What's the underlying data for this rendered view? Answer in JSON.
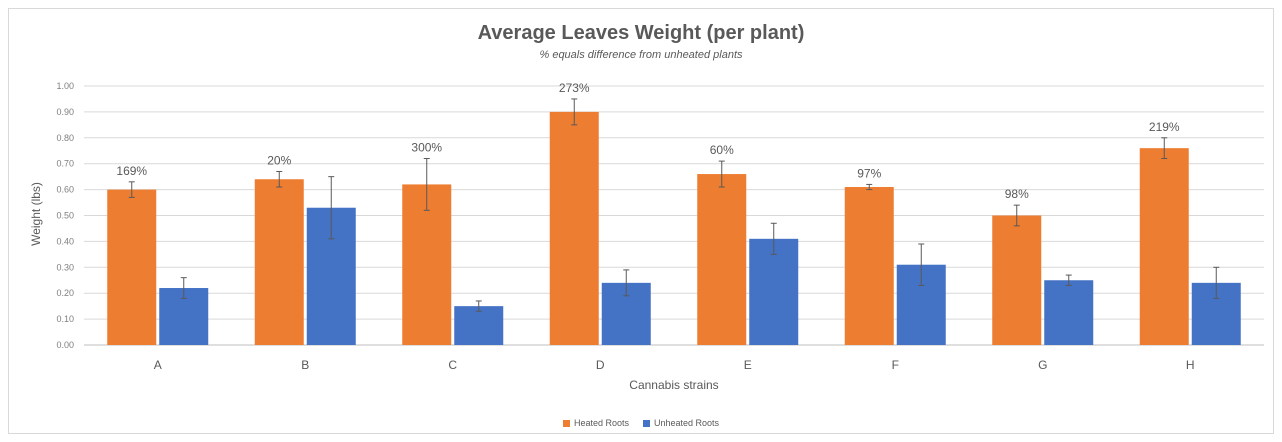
{
  "colors": {
    "heated": "#ed7d31",
    "unheated": "#4472c4",
    "grid": "#d9d9d9",
    "error": "#595959"
  },
  "chart_data": {
    "type": "bar",
    "title": "Average Leaves Weight (per plant)",
    "subtitle": "% equals difference from unheated plants",
    "xlabel": "Cannabis strains",
    "ylabel": "Weight (lbs)",
    "ylim": [
      0,
      1.0
    ],
    "yticks": [
      "0.00",
      "0.10",
      "0.20",
      "0.30",
      "0.40",
      "0.50",
      "0.60",
      "0.70",
      "0.80",
      "0.90",
      "1.00"
    ],
    "categories": [
      "A",
      "B",
      "C",
      "D",
      "E",
      "F",
      "G",
      "H"
    ],
    "series": [
      {
        "name": "Heated Roots",
        "values": [
          0.6,
          0.64,
          0.62,
          0.9,
          0.66,
          0.61,
          0.5,
          0.76
        ],
        "errors": [
          0.03,
          0.03,
          0.1,
          0.05,
          0.05,
          0.01,
          0.04,
          0.04
        ]
      },
      {
        "name": "Unheated Roots",
        "values": [
          0.22,
          0.53,
          0.15,
          0.24,
          0.41,
          0.31,
          0.25,
          0.24
        ],
        "errors": [
          0.04,
          0.12,
          0.02,
          0.05,
          0.06,
          0.08,
          0.02,
          0.06
        ]
      }
    ],
    "data_labels": [
      "169%",
      "20%",
      "300%",
      "273%",
      "60%",
      "97%",
      "98%",
      "219%"
    ],
    "grid": true,
    "legend": "bottom-center"
  }
}
